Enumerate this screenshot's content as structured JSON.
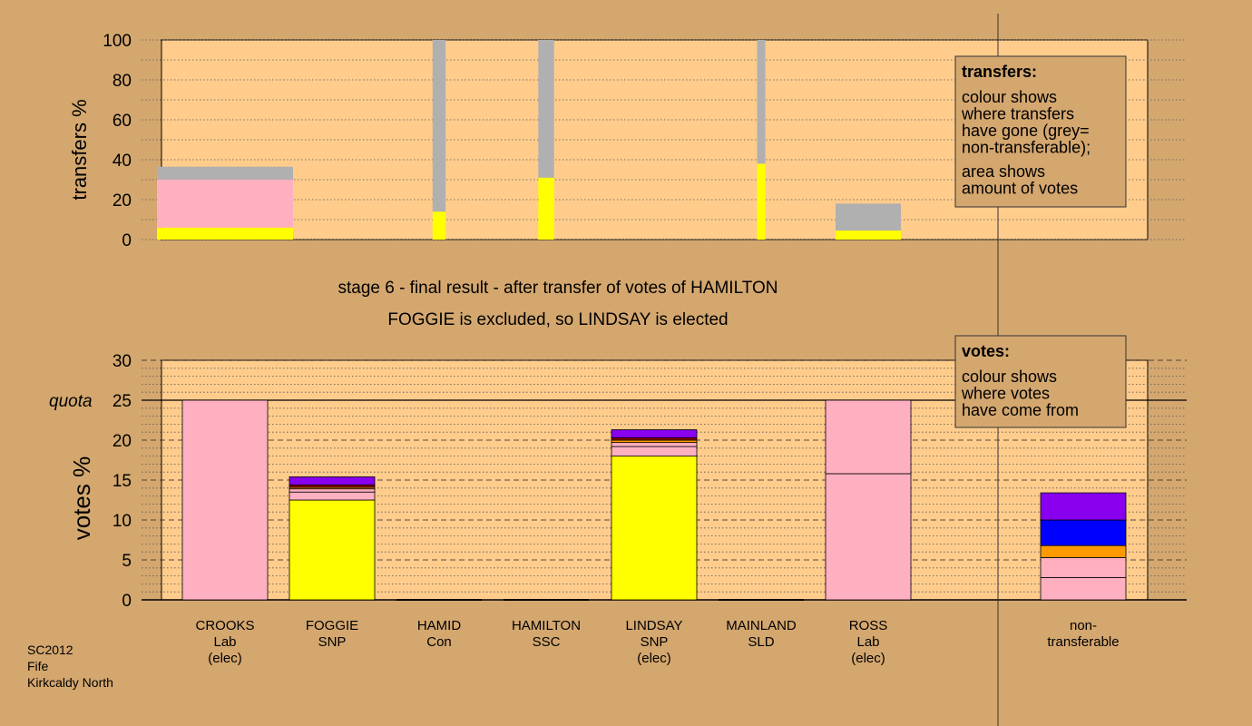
{
  "title_line1": "stage 6 - final result - after transfer of votes of HAMILTON",
  "title_line2": "FOGGIE is excluded, so LINDSAY is elected",
  "footer": [
    "SC2012",
    "Fife",
    "Kirkcaldy North"
  ],
  "colors": {
    "background": "#D4A76F",
    "plot": "#FFCC8C",
    "grey": "#B0B0B0",
    "pink": "#FFB0C0",
    "yellow": "#FFFF00",
    "blue": "#0000FF",
    "purple": "#8800EE",
    "orange": "#FF9900",
    "dark_red": "#990000"
  },
  "chart_data": [
    {
      "type": "bar",
      "role": "transfers",
      "ylabel": "transfers %",
      "ylim": [
        0,
        100
      ],
      "yticks": [
        0,
        20,
        40,
        60,
        80,
        100
      ],
      "legend": {
        "title": "transfers:",
        "lines1": [
          "colour shows",
          "where transfers",
          "have gone (grey=",
          "non-transferable);"
        ],
        "lines2": [
          "area shows",
          "amount of votes"
        ]
      },
      "columns": [
        {
          "candidate": "CROOKS",
          "width_pct": 25.0,
          "segments": [
            {
              "color": "yellow",
              "value": 6
            },
            {
              "color": "pink",
              "value": 24
            },
            {
              "color": "grey",
              "value": 6.5
            }
          ]
        },
        {
          "candidate": "FOGGIE",
          "width_pct": 0,
          "segments": []
        },
        {
          "candidate": "HAMID",
          "width_pct": 2.4,
          "segments": [
            {
              "color": "yellow",
              "value": 14
            },
            {
              "color": "grey",
              "value": 86
            }
          ]
        },
        {
          "candidate": "HAMILTON",
          "width_pct": 2.9,
          "segments": [
            {
              "color": "yellow",
              "value": 31
            },
            {
              "color": "grey",
              "value": 69
            }
          ]
        },
        {
          "candidate": "LINDSAY",
          "width_pct": 0,
          "segments": []
        },
        {
          "candidate": "MAINLAND",
          "width_pct": 1.5,
          "segments": [
            {
              "color": "yellow",
              "value": 38
            },
            {
              "color": "grey",
              "value": 62
            }
          ]
        },
        {
          "candidate": "ROSS",
          "width_pct": 12.0,
          "segments": [
            {
              "color": "yellow",
              "value": 4.5
            },
            {
              "color": "grey",
              "value": 13.5
            }
          ]
        }
      ]
    },
    {
      "type": "bar",
      "role": "votes",
      "ylabel": "votes %",
      "ylim": [
        0,
        30
      ],
      "yticks": [
        0,
        5,
        10,
        15,
        20,
        25,
        30
      ],
      "quota": 25,
      "quota_label": "quota",
      "legend": {
        "title": "votes:",
        "lines1": [
          "colour shows",
          "where votes",
          "have come from"
        ]
      },
      "categories": [
        "CROOKS",
        "FOGGIE",
        "HAMID",
        "HAMILTON",
        "LINDSAY",
        "MAINLAND",
        "ROSS",
        "non-transferable"
      ],
      "labels": [
        [
          "CROOKS",
          "Lab",
          "(elec)"
        ],
        [
          "FOGGIE",
          "SNP"
        ],
        [
          "HAMID",
          "Con"
        ],
        [
          "HAMILTON",
          "SSC"
        ],
        [
          "LINDSAY",
          "SNP",
          "(elec)"
        ],
        [
          "MAINLAND",
          "SLD"
        ],
        [
          "ROSS",
          "Lab",
          "(elec)"
        ],
        [
          "non-",
          "transferable"
        ]
      ],
      "stacks": [
        [
          {
            "color": "pink",
            "value": 25
          }
        ],
        [
          {
            "color": "yellow",
            "value": 12.5
          },
          {
            "color": "pink",
            "value": 1.0
          },
          {
            "color": "pink",
            "value": 0.4
          },
          {
            "color": "orange",
            "value": 0.2
          },
          {
            "color": "dark_red",
            "value": 0.3
          },
          {
            "color": "purple",
            "value": 1.0
          }
        ],
        [],
        [],
        [
          {
            "color": "yellow",
            "value": 18
          },
          {
            "color": "pink",
            "value": 1.2
          },
          {
            "color": "pink",
            "value": 0.5
          },
          {
            "color": "orange",
            "value": 0.3
          },
          {
            "color": "dark_red",
            "value": 0.3
          },
          {
            "color": "purple",
            "value": 1.0
          }
        ],
        [],
        [
          {
            "color": "pink",
            "value": 15.8
          },
          {
            "color": "pink",
            "value": 9.2
          }
        ],
        [
          {
            "color": "pink",
            "value": 2.8
          },
          {
            "color": "pink",
            "value": 2.5
          },
          {
            "color": "orange",
            "value": 1.5
          },
          {
            "color": "blue",
            "value": 3.2
          },
          {
            "color": "purple",
            "value": 3.4
          }
        ]
      ]
    }
  ]
}
